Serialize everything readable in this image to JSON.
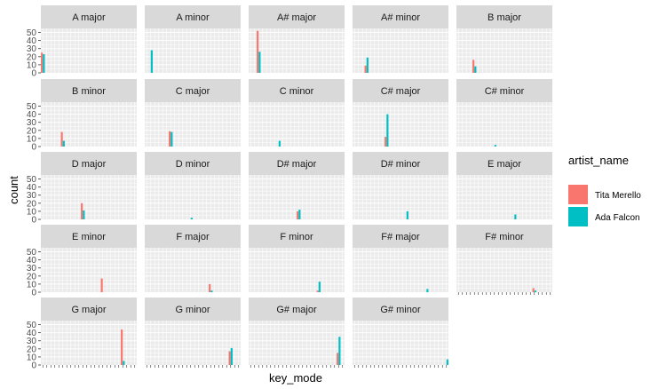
{
  "chart_data": {
    "type": "bar",
    "facet_by": "key_mode",
    "xlabel": "key_mode",
    "ylabel": "count",
    "ylim": [
      0,
      55
    ],
    "yticks": [
      0,
      10,
      20,
      30,
      40,
      50
    ],
    "grid": true,
    "legend": {
      "title": "artist_name",
      "placement": "right",
      "entries": [
        {
          "name": "Tita Merello",
          "color": "#F8766D"
        },
        {
          "name": "Ada Falcon",
          "color": "#00BFC4"
        }
      ]
    },
    "categories": [
      "A major",
      "A minor",
      "A# major",
      "A# minor",
      "B major",
      "B minor",
      "C major",
      "C minor",
      "C# major",
      "C# minor",
      "D major",
      "D minor",
      "D# major",
      "D# minor",
      "E major",
      "E minor",
      "F major",
      "F minor",
      "F# major",
      "F# minor",
      "G major",
      "G minor",
      "G# major",
      "G# minor"
    ],
    "series": [
      {
        "name": "Tita Merello",
        "values": [
          25,
          0,
          52,
          9,
          16,
          18,
          19,
          0,
          12,
          0,
          20,
          0,
          10,
          0,
          0,
          17,
          10,
          2,
          0,
          5,
          44,
          17,
          15,
          0
        ]
      },
      {
        "name": "Ada Falcon",
        "values": [
          23,
          28,
          26,
          19,
          8,
          7,
          18,
          7,
          40,
          2,
          11,
          2,
          12,
          10,
          6,
          0,
          2,
          13,
          4,
          2,
          5,
          21,
          35,
          7
        ]
      }
    ]
  },
  "colors": {
    "panel_bg": "#EBEBEB",
    "strip_bg": "#D9D9D9",
    "grid": "#FFFFFF"
  }
}
